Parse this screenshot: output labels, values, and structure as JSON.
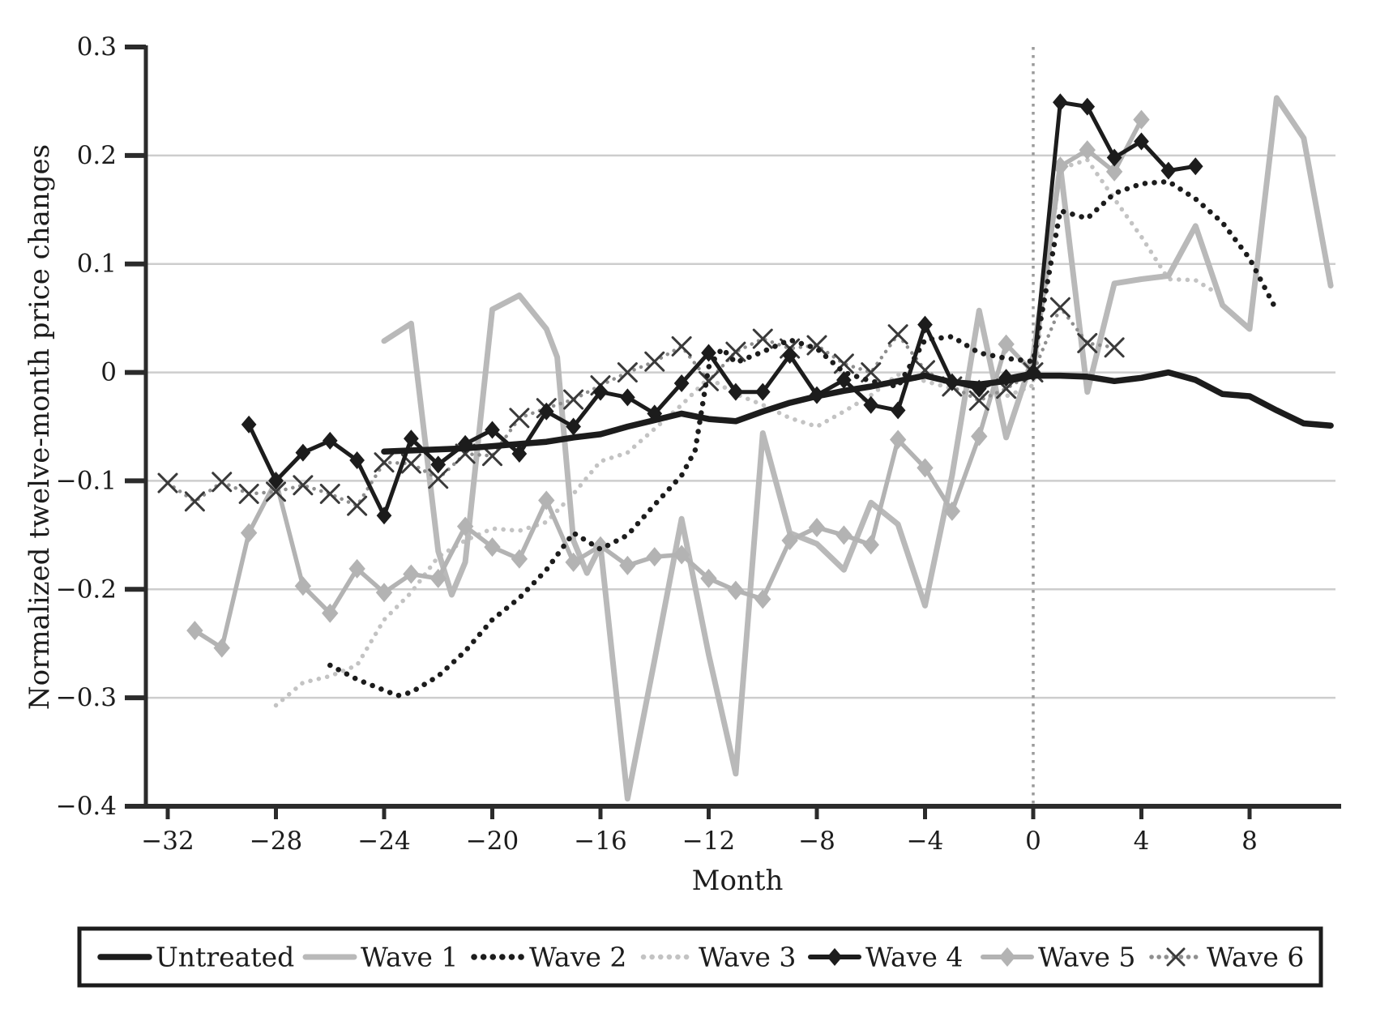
{
  "figure": {
    "y_axis_label": "Normalized twelve-month price changes",
    "x_axis_label": "Month"
  },
  "colors": {
    "black_series": "#1c1c1c",
    "gray_series": "#b9b9b9",
    "light_gray_series": "#c3c3c3",
    "wave6_dots": "#8f8f8f",
    "wave6_marker": "#3a3a3a",
    "gridline": "#cdcdcd",
    "axis": "#2b2b2b",
    "event_line": "#9b9b9b"
  },
  "chart_data": {
    "type": "line",
    "title": "",
    "xlabel": "Month",
    "ylabel": "Normalized twelve-month price changes",
    "xlim": [
      -32.8,
      11.2
    ],
    "ylim": [
      -0.4,
      0.3
    ],
    "x_ticks": [
      -32,
      -28,
      -24,
      -20,
      -16,
      -12,
      -8,
      -4,
      0,
      4,
      8
    ],
    "y_ticks": [
      0.3,
      0.2,
      0.1,
      0,
      -0.1,
      -0.2,
      -0.3,
      -0.4
    ],
    "grid": "horizontal",
    "event_line_x": 0,
    "legend_position": "bottom",
    "draw_order": [
      "Wave 3",
      "Wave 1",
      "Wave 5",
      "Wave 6",
      "Wave 2",
      "Untreated",
      "Wave 4"
    ],
    "series": [
      {
        "name": "Untreated",
        "color": "#1c1c1c",
        "line": "solid",
        "width": 7.5,
        "marker": "none",
        "points": [
          [
            -24,
            -0.073
          ],
          [
            -23,
            -0.072
          ],
          [
            -22,
            -0.071
          ],
          [
            -21,
            -0.07
          ],
          [
            -20,
            -0.068
          ],
          [
            -19,
            -0.066
          ],
          [
            -18,
            -0.064
          ],
          [
            -17,
            -0.06
          ],
          [
            -16,
            -0.057
          ],
          [
            -15,
            -0.05
          ],
          [
            -14,
            -0.044
          ],
          [
            -13,
            -0.038
          ],
          [
            -12,
            -0.043
          ],
          [
            -11,
            -0.045
          ],
          [
            -10,
            -0.036
          ],
          [
            -9,
            -0.028
          ],
          [
            -8,
            -0.022
          ],
          [
            -7,
            -0.017
          ],
          [
            -6,
            -0.013
          ],
          [
            -5,
            -0.008
          ],
          [
            -4,
            -0.003
          ],
          [
            -3,
            -0.009
          ],
          [
            -2,
            -0.011
          ],
          [
            -1,
            -0.008
          ],
          [
            0,
            -0.003
          ],
          [
            1,
            -0.003
          ],
          [
            2,
            -0.004
          ],
          [
            3,
            -0.008
          ],
          [
            4,
            -0.005
          ],
          [
            5,
            0.0
          ],
          [
            6,
            -0.007
          ],
          [
            7,
            -0.02
          ],
          [
            8,
            -0.022
          ],
          [
            9,
            -0.035
          ],
          [
            10,
            -0.047
          ],
          [
            11,
            -0.049
          ]
        ]
      },
      {
        "name": "Wave 1",
        "color": "#b9b9b9",
        "line": "solid",
        "width": 7,
        "marker": "none",
        "points": [
          [
            -24,
            0.029
          ],
          [
            -23,
            0.045
          ],
          [
            -22,
            -0.165
          ],
          [
            -21.5,
            -0.205
          ],
          [
            -21,
            -0.175
          ],
          [
            -20,
            0.058
          ],
          [
            -19,
            0.071
          ],
          [
            -18,
            0.04
          ],
          [
            -17.6,
            0.014
          ],
          [
            -17,
            -0.155
          ],
          [
            -16.5,
            -0.185
          ],
          [
            -16,
            -0.16
          ],
          [
            -15,
            -0.393
          ],
          [
            -14,
            -0.265
          ],
          [
            -13,
            -0.135
          ],
          [
            -12,
            -0.26
          ],
          [
            -11,
            -0.37
          ],
          [
            -10,
            -0.056
          ],
          [
            -9,
            -0.148
          ],
          [
            -8,
            -0.158
          ],
          [
            -7,
            -0.182
          ],
          [
            -6,
            -0.12
          ],
          [
            -5,
            -0.14
          ],
          [
            -4,
            -0.215
          ],
          [
            -3,
            -0.095
          ],
          [
            -2,
            0.057
          ],
          [
            -1,
            -0.06
          ],
          [
            0,
            0.015
          ],
          [
            1,
            0.19
          ],
          [
            2,
            -0.018
          ],
          [
            3,
            0.082
          ],
          [
            4,
            0.086
          ],
          [
            5,
            0.089
          ],
          [
            6,
            0.135
          ],
          [
            7,
            0.062
          ],
          [
            8,
            0.04
          ],
          [
            9,
            0.253
          ],
          [
            10,
            0.216
          ],
          [
            11,
            0.08
          ]
        ]
      },
      {
        "name": "Wave 2",
        "color": "#1c1c1c",
        "line": "dotted",
        "width": 6.5,
        "dash_gap": 11.5,
        "marker": "none",
        "points": [
          [
            -26,
            -0.27
          ],
          [
            -25,
            -0.283
          ],
          [
            -24,
            -0.293
          ],
          [
            -23.5,
            -0.298
          ],
          [
            -23,
            -0.295
          ],
          [
            -22,
            -0.28
          ],
          [
            -21,
            -0.257
          ],
          [
            -20,
            -0.228
          ],
          [
            -19,
            -0.208
          ],
          [
            -18,
            -0.182
          ],
          [
            -17,
            -0.148
          ],
          [
            -16,
            -0.163
          ],
          [
            -15,
            -0.15
          ],
          [
            -14,
            -0.122
          ],
          [
            -13,
            -0.095
          ],
          [
            -12.5,
            -0.072
          ],
          [
            -12,
            0.005
          ],
          [
            -11.5,
            0.022
          ],
          [
            -11,
            0.009
          ],
          [
            -10,
            0.019
          ],
          [
            -9,
            0.03
          ],
          [
            -8,
            0.022
          ],
          [
            -7,
            0.0
          ],
          [
            -6,
            -0.008
          ],
          [
            -5,
            -0.013
          ],
          [
            -4,
            0.03
          ],
          [
            -3,
            0.033
          ],
          [
            -2,
            0.018
          ],
          [
            -1,
            0.013
          ],
          [
            0,
            0.01
          ],
          [
            1,
            0.149
          ],
          [
            2,
            0.142
          ],
          [
            3,
            0.165
          ],
          [
            4,
            0.174
          ],
          [
            5,
            0.176
          ],
          [
            6,
            0.16
          ],
          [
            7,
            0.138
          ],
          [
            8,
            0.105
          ],
          [
            9,
            0.057
          ]
        ]
      },
      {
        "name": "Wave 3",
        "color": "#c3c3c3",
        "line": "dotted",
        "width": 5.5,
        "dash_gap": 10.5,
        "marker": "none",
        "points": [
          [
            -28,
            -0.307
          ],
          [
            -27,
            -0.286
          ],
          [
            -26,
            -0.28
          ],
          [
            -25,
            -0.27
          ],
          [
            -24,
            -0.228
          ],
          [
            -23,
            -0.203
          ],
          [
            -22,
            -0.17
          ],
          [
            -21,
            -0.155
          ],
          [
            -20,
            -0.144
          ],
          [
            -19,
            -0.146
          ],
          [
            -18,
            -0.138
          ],
          [
            -17,
            -0.112
          ],
          [
            -16,
            -0.082
          ],
          [
            -15,
            -0.074
          ],
          [
            -14,
            -0.052
          ],
          [
            -13,
            -0.03
          ],
          [
            -12,
            -0.005
          ],
          [
            -11,
            -0.02
          ],
          [
            -10,
            -0.03
          ],
          [
            -9,
            -0.042
          ],
          [
            -8,
            -0.05
          ],
          [
            -7,
            -0.036
          ],
          [
            -6,
            -0.021
          ],
          [
            -5,
            -0.002
          ],
          [
            -4,
            -0.008
          ],
          [
            -3,
            -0.015
          ],
          [
            -2,
            -0.021
          ],
          [
            -1,
            -0.022
          ],
          [
            0,
            -0.012
          ],
          [
            1,
            0.188
          ],
          [
            2,
            0.196
          ],
          [
            3,
            0.16
          ],
          [
            4,
            0.125
          ],
          [
            5,
            0.086
          ],
          [
            6,
            0.085
          ],
          [
            7,
            0.07
          ]
        ]
      },
      {
        "name": "Wave 4",
        "color": "#1c1c1c",
        "line": "solid",
        "width": 5,
        "marker": "diamond",
        "marker_size": 11,
        "points": [
          [
            -29,
            -0.048
          ],
          [
            -28,
            -0.1
          ],
          [
            -27,
            -0.074
          ],
          [
            -26,
            -0.063
          ],
          [
            -25,
            -0.081
          ],
          [
            -24,
            -0.132
          ],
          [
            -23,
            -0.061
          ],
          [
            -22,
            -0.085
          ],
          [
            -21,
            -0.066
          ],
          [
            -20,
            -0.053
          ],
          [
            -19,
            -0.075
          ],
          [
            -18,
            -0.036
          ],
          [
            -17,
            -0.05
          ],
          [
            -16,
            -0.018
          ],
          [
            -15,
            -0.023
          ],
          [
            -14,
            -0.038
          ],
          [
            -13,
            -0.01
          ],
          [
            -12,
            0.018
          ],
          [
            -11,
            -0.018
          ],
          [
            -10,
            -0.018
          ],
          [
            -9,
            0.016
          ],
          [
            -8,
            -0.021
          ],
          [
            -7,
            -0.007
          ],
          [
            -6,
            -0.03
          ],
          [
            -5,
            -0.035
          ],
          [
            -4,
            0.044
          ],
          [
            -3,
            -0.009
          ],
          [
            -2,
            -0.015
          ],
          [
            -1,
            -0.005
          ],
          [
            0,
            0.0
          ],
          [
            1,
            0.249
          ],
          [
            2,
            0.245
          ],
          [
            3,
            0.198
          ],
          [
            4,
            0.213
          ],
          [
            5,
            0.186
          ],
          [
            6,
            0.19
          ]
        ]
      },
      {
        "name": "Wave 5",
        "color": "#b3b3b3",
        "line": "solid",
        "width": 5.5,
        "marker": "diamond",
        "marker_size": 12,
        "points": [
          [
            -31,
            -0.238
          ],
          [
            -30,
            -0.254
          ],
          [
            -29,
            -0.148
          ],
          [
            -28,
            -0.1
          ],
          [
            -27,
            -0.197
          ],
          [
            -26,
            -0.222
          ],
          [
            -25,
            -0.181
          ],
          [
            -24,
            -0.203
          ],
          [
            -23,
            -0.186
          ],
          [
            -22,
            -0.19
          ],
          [
            -21,
            -0.142
          ],
          [
            -20,
            -0.161
          ],
          [
            -19,
            -0.172
          ],
          [
            -18,
            -0.118
          ],
          [
            -17,
            -0.175
          ],
          [
            -16,
            -0.16
          ],
          [
            -15,
            -0.178
          ],
          [
            -14,
            -0.17
          ],
          [
            -13,
            -0.168
          ],
          [
            -12,
            -0.19
          ],
          [
            -11,
            -0.201
          ],
          [
            -10,
            -0.209
          ],
          [
            -9,
            -0.155
          ],
          [
            -8,
            -0.143
          ],
          [
            -7,
            -0.15
          ],
          [
            -6,
            -0.159
          ],
          [
            -5,
            -0.062
          ],
          [
            -4,
            -0.088
          ],
          [
            -3,
            -0.128
          ],
          [
            -2,
            -0.059
          ],
          [
            -1,
            0.026
          ],
          [
            0,
            0.0
          ],
          [
            1,
            0.19
          ],
          [
            2,
            0.205
          ],
          [
            3,
            0.185
          ],
          [
            4,
            0.233
          ]
        ]
      },
      {
        "name": "Wave 6",
        "color": "#8f8f8f",
        "line": "dotted",
        "width": 4.5,
        "dash_gap": 9,
        "marker": "x",
        "marker_color": "#3a3a3a",
        "marker_size": 11,
        "points": [
          [
            -32,
            -0.102
          ],
          [
            -31,
            -0.119
          ],
          [
            -30,
            -0.101
          ],
          [
            -29,
            -0.112
          ],
          [
            -28,
            -0.11
          ],
          [
            -27,
            -0.104
          ],
          [
            -26,
            -0.112
          ],
          [
            -25,
            -0.123
          ],
          [
            -24,
            -0.083
          ],
          [
            -23,
            -0.084
          ],
          [
            -22,
            -0.098
          ],
          [
            -21,
            -0.075
          ],
          [
            -20,
            -0.077
          ],
          [
            -19,
            -0.042
          ],
          [
            -18,
            -0.033
          ],
          [
            -17,
            -0.025
          ],
          [
            -16,
            -0.012
          ],
          [
            -15,
            0.0
          ],
          [
            -14,
            0.01
          ],
          [
            -13,
            0.024
          ],
          [
            -12,
            -0.008
          ],
          [
            -11,
            0.019
          ],
          [
            -10,
            0.031
          ],
          [
            -9,
            0.022
          ],
          [
            -8,
            0.025
          ],
          [
            -7,
            0.008
          ],
          [
            -6,
            0.0
          ],
          [
            -5,
            0.035
          ],
          [
            -4,
            0.002
          ],
          [
            -3,
            -0.013
          ],
          [
            -2,
            -0.026
          ],
          [
            -1,
            -0.015
          ],
          [
            0,
            0.0
          ],
          [
            1,
            0.06
          ],
          [
            2,
            0.027
          ],
          [
            3,
            0.023
          ]
        ]
      }
    ]
  }
}
